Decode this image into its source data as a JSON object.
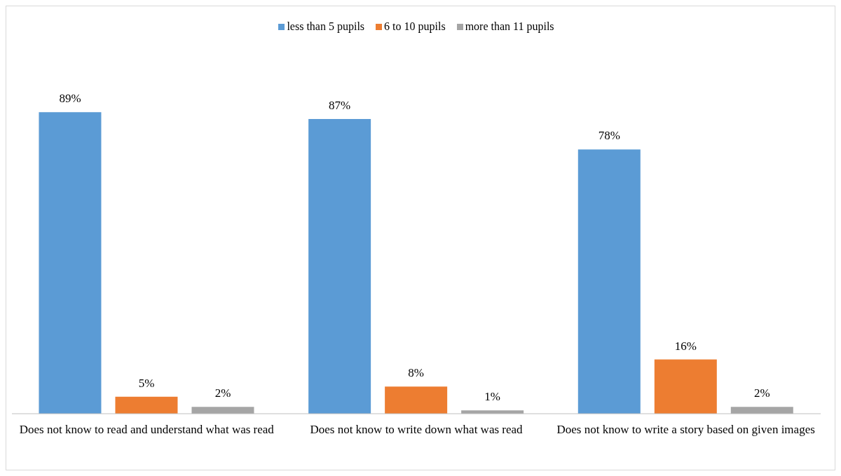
{
  "chart_data": {
    "type": "bar",
    "categories": [
      "Does not know to read and understand what was read",
      "Does not know to write down what was read",
      "Does not know to write a story based on given images"
    ],
    "series": [
      {
        "name": "less than 5 pupils",
        "color": "#5b9bd5",
        "values": [
          89,
          87,
          78
        ],
        "value_labels": [
          "89%",
          "87%",
          "78%"
        ]
      },
      {
        "name": "6 to 10 pupils",
        "color": "#ed7d31",
        "values": [
          5,
          8,
          16
        ],
        "value_labels": [
          "5%",
          "8%",
          "16%"
        ]
      },
      {
        "name": "more than 11 pupils",
        "color": "#a5a5a5",
        "values": [
          2,
          1,
          2
        ],
        "value_labels": [
          "2%",
          "1%",
          "2%"
        ]
      }
    ],
    "legend": "top"
  }
}
